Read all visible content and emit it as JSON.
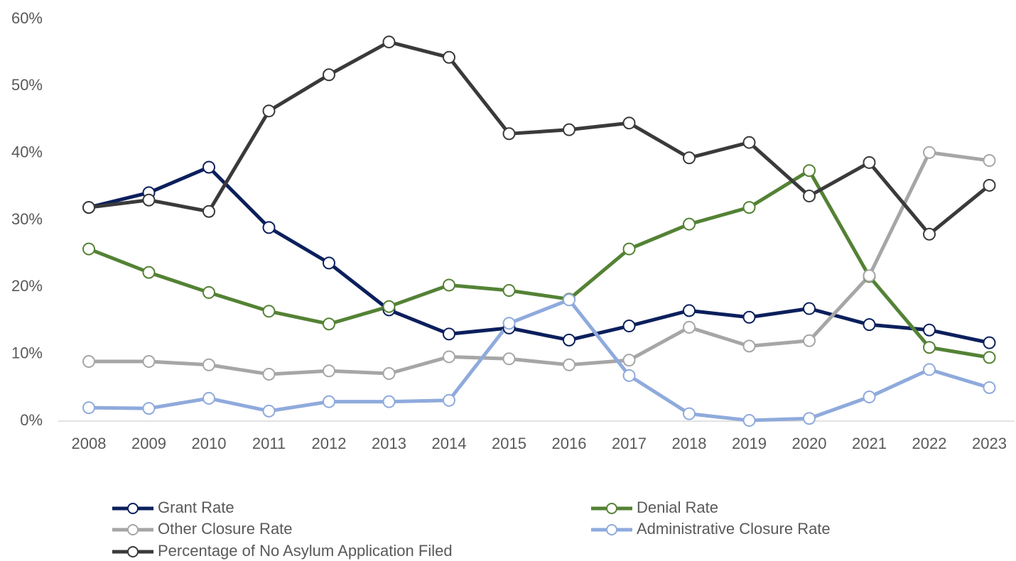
{
  "chart_data": {
    "type": "line",
    "categories": [
      "2008",
      "2009",
      "2010",
      "2011",
      "2012",
      "2013",
      "2014",
      "2015",
      "2016",
      "2017",
      "2018",
      "2019",
      "2020",
      "2021",
      "2022",
      "2023"
    ],
    "series": [
      {
        "name": "Grant Rate",
        "color": "#0b1f5c",
        "values": [
          31.9,
          34.1,
          37.9,
          28.9,
          23.6,
          16.6,
          13.0,
          13.9,
          12.1,
          14.2,
          16.5,
          15.5,
          16.8,
          14.4,
          13.6,
          11.7
        ]
      },
      {
        "name": "Denial Rate",
        "color": "#548235",
        "values": [
          25.7,
          22.2,
          19.2,
          16.4,
          14.5,
          17.1,
          20.3,
          19.5,
          18.2,
          25.7,
          29.4,
          31.9,
          37.4,
          21.6,
          11.0,
          9.5
        ]
      },
      {
        "name": "Other Closure Rate",
        "color": "#a6a6a6",
        "values": [
          8.9,
          8.9,
          8.4,
          7.0,
          7.5,
          7.1,
          9.6,
          9.3,
          8.4,
          9.1,
          14.0,
          11.2,
          12.0,
          21.7,
          40.1,
          38.9
        ]
      },
      {
        "name": "Administrative Closure Rate",
        "color": "#8faadc",
        "values": [
          2.0,
          1.9,
          3.4,
          1.5,
          2.9,
          2.9,
          3.1,
          14.6,
          18.1,
          6.8,
          1.1,
          0.1,
          0.4,
          3.6,
          7.7,
          5.0
        ]
      },
      {
        "name": "Percentage of No Asylum Application Filed",
        "color": "#3a3a3a",
        "values": [
          31.9,
          33.0,
          31.3,
          46.3,
          51.7,
          56.6,
          54.3,
          42.9,
          43.5,
          44.5,
          39.3,
          41.6,
          33.6,
          38.6,
          27.9,
          35.2
        ]
      }
    ],
    "ylim": [
      0,
      60
    ],
    "yticks": [
      {
        "value": 0,
        "label": "0%"
      },
      {
        "value": 10,
        "label": "10%"
      },
      {
        "value": 20,
        "label": "20%"
      },
      {
        "value": 30,
        "label": "30%"
      },
      {
        "value": 40,
        "label": "40%"
      },
      {
        "value": 50,
        "label": "50%"
      },
      {
        "value": 60,
        "label": "60%"
      }
    ],
    "grid": false,
    "legend": "bottom"
  }
}
